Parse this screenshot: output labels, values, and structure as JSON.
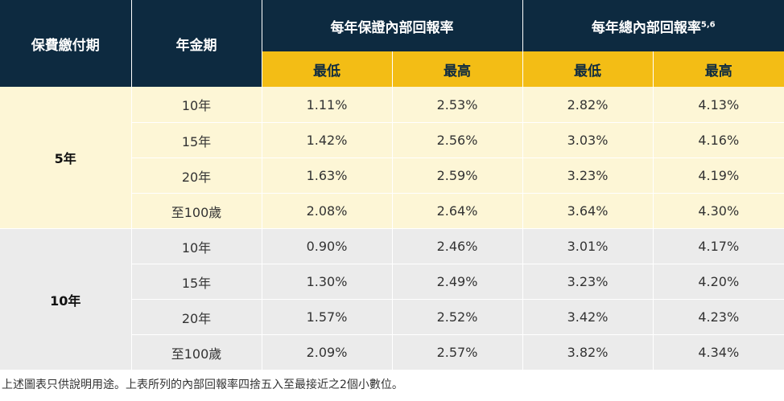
{
  "header": {
    "payment_term": "保費繳付期",
    "annuity_term": "年金期",
    "guaranteed_irr": "每年保證內部回報率",
    "total_irr": "每年總內部回報率",
    "total_irr_sup": "5,6",
    "min": "最低",
    "max": "最高"
  },
  "groups": [
    {
      "plan": "5年",
      "rows": [
        {
          "term": "10年",
          "g_min": "1.11%",
          "g_max": "2.53%",
          "t_min": "2.82%",
          "t_max": "4.13%"
        },
        {
          "term": "15年",
          "g_min": "1.42%",
          "g_max": "2.56%",
          "t_min": "3.03%",
          "t_max": "4.16%"
        },
        {
          "term": "20年",
          "g_min": "1.63%",
          "g_max": "2.59%",
          "t_min": "3.23%",
          "t_max": "4.19%"
        },
        {
          "term": "至100歲",
          "g_min": "2.08%",
          "g_max": "2.64%",
          "t_min": "3.64%",
          "t_max": "4.30%"
        }
      ]
    },
    {
      "plan": "10年",
      "rows": [
        {
          "term": "10年",
          "g_min": "0.90%",
          "g_max": "2.46%",
          "t_min": "3.01%",
          "t_max": "4.17%"
        },
        {
          "term": "15年",
          "g_min": "1.30%",
          "g_max": "2.49%",
          "t_min": "3.23%",
          "t_max": "4.20%"
        },
        {
          "term": "20年",
          "g_min": "1.57%",
          "g_max": "2.52%",
          "t_min": "3.42%",
          "t_max": "4.23%"
        },
        {
          "term": "至100歲",
          "g_min": "2.09%",
          "g_max": "2.57%",
          "t_min": "3.82%",
          "t_max": "4.34%"
        }
      ]
    }
  ],
  "footnote": "上述圖表只供說明用途。上表所列的內部回報率四捨五入至最接近之2個小數位。",
  "colors": {
    "header_dark": "#0d2a40",
    "header_gold": "#f3bd15",
    "band_5yr": "#fdf6d6",
    "band_10yr": "#ebebeb"
  }
}
